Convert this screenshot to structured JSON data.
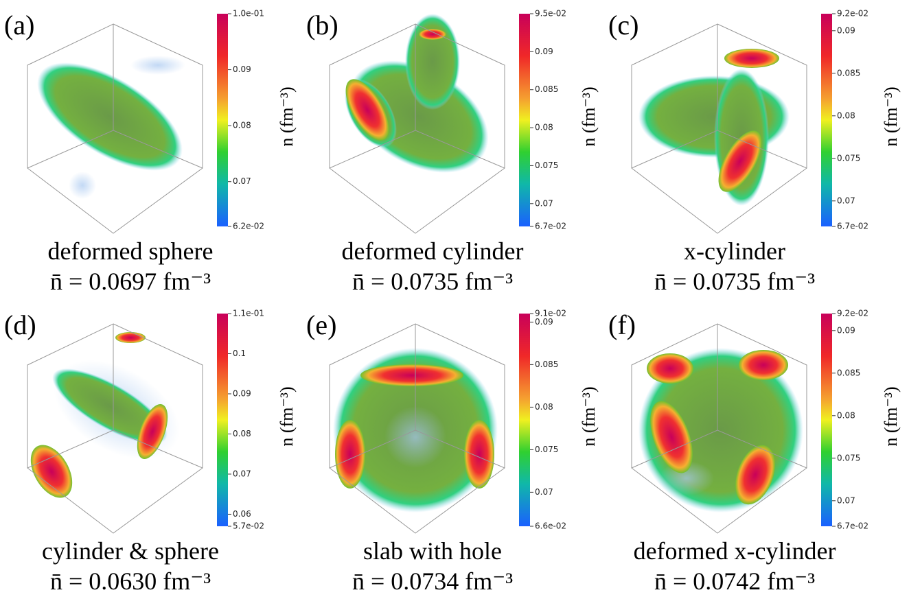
{
  "panels": [
    {
      "label": "(a)",
      "caption": "deformed sphere",
      "density": "n̄ = 0.0697 fm⁻³",
      "colorbar": {
        "title": "n (fm⁻³)",
        "min": {
          "value": 0.062,
          "label": "6.2e-02"
        },
        "max": {
          "value": 0.1,
          "label": "1.0e-01"
        },
        "ticks": [
          0.09,
          0.08,
          0.07
        ]
      }
    },
    {
      "label": "(b)",
      "caption": "deformed cylinder",
      "density": "n̄ = 0.0735 fm⁻³",
      "colorbar": {
        "title": "n (fm⁻³)",
        "min": {
          "value": 0.067,
          "label": "6.7e-02"
        },
        "max": {
          "value": 0.095,
          "label": "9.5e-02"
        },
        "ticks": [
          0.09,
          0.085,
          0.08,
          0.075,
          0.07
        ]
      }
    },
    {
      "label": "(c)",
      "caption": "x-cylinder",
      "density": "n̄ = 0.0735 fm⁻³",
      "colorbar": {
        "title": "n (fm⁻³)",
        "min": {
          "value": 0.067,
          "label": "6.7e-02"
        },
        "max": {
          "value": 0.092,
          "label": "9.2e-02"
        },
        "ticks": [
          0.09,
          0.085,
          0.08,
          0.075,
          0.07
        ]
      }
    },
    {
      "label": "(d)",
      "caption": "cylinder & sphere",
      "density": "n̄ = 0.0630 fm⁻³",
      "colorbar": {
        "title": "n (fm⁻³)",
        "min": {
          "value": 0.057,
          "label": "5.7e-02"
        },
        "max": {
          "value": 0.11,
          "label": "1.1e-01"
        },
        "ticks": [
          0.1,
          0.09,
          0.08,
          0.07,
          0.06
        ]
      }
    },
    {
      "label": "(e)",
      "caption": "slab with hole",
      "density": "n̄ = 0.0734 fm⁻³",
      "colorbar": {
        "title": "n (fm⁻³)",
        "min": {
          "value": 0.066,
          "label": "6.6e-02"
        },
        "max": {
          "value": 0.091,
          "label": "9.1e-02"
        },
        "ticks": [
          0.09,
          0.085,
          0.08,
          0.075,
          0.07
        ]
      }
    },
    {
      "label": "(f)",
      "caption": "deformed x-cylinder",
      "density": "n̄ = 0.0742 fm⁻³",
      "colorbar": {
        "title": "n (fm⁻³)",
        "min": {
          "value": 0.067,
          "label": "6.7e-02"
        },
        "max": {
          "value": 0.092,
          "label": "9.2e-02"
        },
        "ticks": [
          0.09,
          0.085,
          0.08,
          0.075,
          0.07
        ]
      }
    }
  ]
}
